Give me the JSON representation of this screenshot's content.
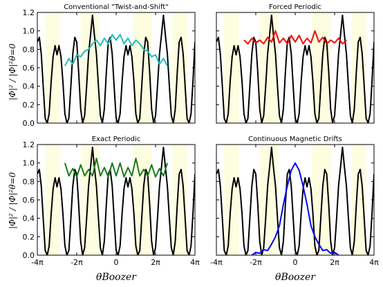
{
  "figure": {
    "ylabel_shared": "|Φ|² / |Φ|²θ=0",
    "xlabel_shared": "θBoozer"
  },
  "shared_axes": {
    "x_range_over_pi": [
      -4,
      4
    ],
    "y_range": [
      0,
      1.2
    ],
    "x_ticks": [
      {
        "value_over_pi": -4,
        "label": "-4π"
      },
      {
        "value_over_pi": -2,
        "label": "-2π"
      },
      {
        "value_over_pi": 0,
        "label": "0"
      },
      {
        "value_over_pi": 2,
        "label": "2π"
      },
      {
        "value_over_pi": 4,
        "label": "4π"
      }
    ],
    "y_ticks": [
      {
        "value": 0.0,
        "label": "0.0"
      },
      {
        "value": 0.2,
        "label": "0.2"
      },
      {
        "value": 0.4,
        "label": "0.4"
      },
      {
        "value": 0.6,
        "label": "0.6"
      },
      {
        "value": 0.8,
        "label": "0.8"
      },
      {
        "value": 1.0,
        "label": "1.0"
      },
      {
        "value": 1.2,
        "label": "1.2"
      }
    ],
    "shaded_bands_over_pi": [
      [
        -3.6,
        -2.85
      ],
      [
        -1.8,
        -0.85
      ],
      [
        0.85,
        1.8
      ],
      [
        2.85,
        3.6
      ]
    ],
    "band_color": "#fdfde0"
  },
  "chart_data": [
    {
      "type": "line",
      "title": "Conventional \"Twist-and-Shift\"",
      "series": [
        {
          "color": "#000000",
          "x_over_pi": [
            -4,
            -3.9,
            -3.8,
            -3.7,
            -3.6,
            -3.5,
            -3.4,
            -3.3,
            -3.2,
            -3.1,
            -3.0,
            -2.9,
            -2.8,
            -2.7,
            -2.6,
            -2.5,
            -2.4,
            -2.3,
            -2.2,
            -2.1,
            -2.0,
            -1.9,
            -1.8,
            -1.7,
            -1.6,
            -1.5,
            -1.4,
            -1.3,
            -1.2,
            -1.1,
            -1.0,
            -0.9,
            -0.8,
            -0.7,
            -0.6,
            -0.5,
            -0.4,
            -0.3,
            -0.2,
            -0.1,
            0.0,
            0.1,
            0.2,
            0.3,
            0.4,
            0.5,
            0.6,
            0.7,
            0.8,
            0.9,
            1.0,
            1.1,
            1.2,
            1.3,
            1.4,
            1.5,
            1.6,
            1.7,
            1.8,
            1.9,
            2.0,
            2.1,
            2.2,
            2.3,
            2.4,
            2.5,
            2.6,
            2.7,
            2.8,
            2.9,
            3.0,
            3.1,
            3.2,
            3.3,
            3.4,
            3.5,
            3.6,
            3.7,
            3.8,
            3.9,
            4.0
          ],
          "y": [
            0.88,
            0.93,
            0.75,
            0.4,
            0.05,
            0.0,
            0.1,
            0.45,
            0.72,
            0.84,
            0.74,
            0.84,
            0.72,
            0.45,
            0.1,
            0.0,
            0.05,
            0.4,
            0.75,
            0.93,
            0.88,
            0.55,
            0.15,
            0.0,
            0.08,
            0.4,
            0.75,
            0.95,
            1.17,
            0.95,
            0.75,
            0.4,
            0.08,
            0.0,
            0.15,
            0.55,
            0.88,
            0.93,
            0.75,
            0.4,
            0.05,
            0.0,
            0.1,
            0.45,
            0.72,
            0.84,
            0.74,
            0.84,
            0.72,
            0.45,
            0.1,
            0.0,
            0.05,
            0.4,
            0.75,
            0.93,
            0.88,
            0.55,
            0.15,
            0.0,
            0.08,
            0.4,
            0.75,
            0.95,
            1.17,
            0.95,
            0.75,
            0.4,
            0.08,
            0.0,
            0.15,
            0.55,
            0.88,
            0.93,
            0.75,
            0.4,
            0.05,
            0.0,
            0.1,
            0.45,
            0.88
          ]
        },
        {
          "color": "#1fbfbf",
          "x_over_pi": [
            -2.6,
            -2.4,
            -2.2,
            -2.0,
            -1.8,
            -1.6,
            -1.4,
            -1.2,
            -1.0,
            -0.8,
            -0.6,
            -0.4,
            -0.2,
            0.0,
            0.2,
            0.4,
            0.6,
            0.8,
            1.0,
            1.2,
            1.4,
            1.6,
            1.8,
            2.0,
            2.2,
            2.4,
            2.6
          ],
          "y": [
            0.62,
            0.7,
            0.64,
            0.74,
            0.72,
            0.78,
            0.8,
            0.86,
            0.9,
            0.84,
            0.92,
            0.86,
            0.96,
            0.9,
            0.96,
            0.86,
            0.92,
            0.84,
            0.9,
            0.86,
            0.8,
            0.78,
            0.72,
            0.74,
            0.64,
            0.7,
            0.62
          ]
        }
      ]
    },
    {
      "type": "line",
      "title": "Forced Periodic",
      "series": [
        {
          "color": "#000000",
          "x_over_pi": "same",
          "y": "same"
        },
        {
          "color": "#ff0000",
          "x_over_pi": [
            -2.6,
            -2.4,
            -2.2,
            -2.0,
            -1.8,
            -1.6,
            -1.4,
            -1.2,
            -1.0,
            -0.8,
            -0.6,
            -0.4,
            -0.2,
            0.0,
            0.2,
            0.4,
            0.6,
            0.8,
            1.0,
            1.2,
            1.4,
            1.6,
            1.8,
            2.0,
            2.2,
            2.4,
            2.6
          ],
          "y": [
            0.9,
            0.86,
            0.92,
            0.87,
            0.9,
            0.86,
            0.93,
            0.88,
            1.0,
            0.87,
            0.92,
            0.86,
            0.95,
            0.88,
            0.95,
            0.86,
            0.92,
            0.87,
            1.0,
            0.88,
            0.93,
            0.86,
            0.9,
            0.87,
            0.92,
            0.86,
            0.9
          ]
        }
      ]
    },
    {
      "type": "line",
      "title": "Exact Periodic",
      "series": [
        {
          "color": "#000000",
          "x_over_pi": "same",
          "y": "same"
        },
        {
          "color": "#1b7a1b",
          "x_over_pi": [
            -2.6,
            -2.4,
            -2.2,
            -2.0,
            -1.8,
            -1.6,
            -1.4,
            -1.2,
            -1.0,
            -0.8,
            -0.6,
            -0.4,
            -0.2,
            0.0,
            0.2,
            0.4,
            0.6,
            0.8,
            1.0,
            1.2,
            1.4,
            1.6,
            1.8,
            2.0,
            2.2,
            2.4,
            2.6
          ],
          "y": [
            1.0,
            0.86,
            0.94,
            0.85,
            0.98,
            0.86,
            0.93,
            0.86,
            1.05,
            0.86,
            0.95,
            0.85,
            1.0,
            0.86,
            1.0,
            0.85,
            0.95,
            0.86,
            1.05,
            0.86,
            0.93,
            0.86,
            0.98,
            0.85,
            0.94,
            0.86,
            1.0
          ]
        }
      ]
    },
    {
      "type": "line",
      "title": "Continuous Magnetic Drifts",
      "series": [
        {
          "color": "#000000",
          "x_over_pi": "same",
          "y": "same"
        },
        {
          "color": "#0000ff",
          "x_over_pi": [
            -2.2,
            -2.0,
            -1.8,
            -1.6,
            -1.4,
            -1.2,
            -1.0,
            -0.8,
            -0.6,
            -0.4,
            -0.2,
            0.0,
            0.2,
            0.4,
            0.6,
            0.8,
            1.0,
            1.2,
            1.4,
            1.6,
            1.8,
            2.0,
            2.2
          ],
          "y": [
            0.0,
            0.03,
            0.02,
            0.06,
            0.05,
            0.12,
            0.2,
            0.32,
            0.55,
            0.75,
            0.92,
            1.0,
            0.92,
            0.75,
            0.55,
            0.32,
            0.2,
            0.12,
            0.05,
            0.06,
            0.02,
            0.03,
            0.0
          ]
        }
      ]
    }
  ]
}
